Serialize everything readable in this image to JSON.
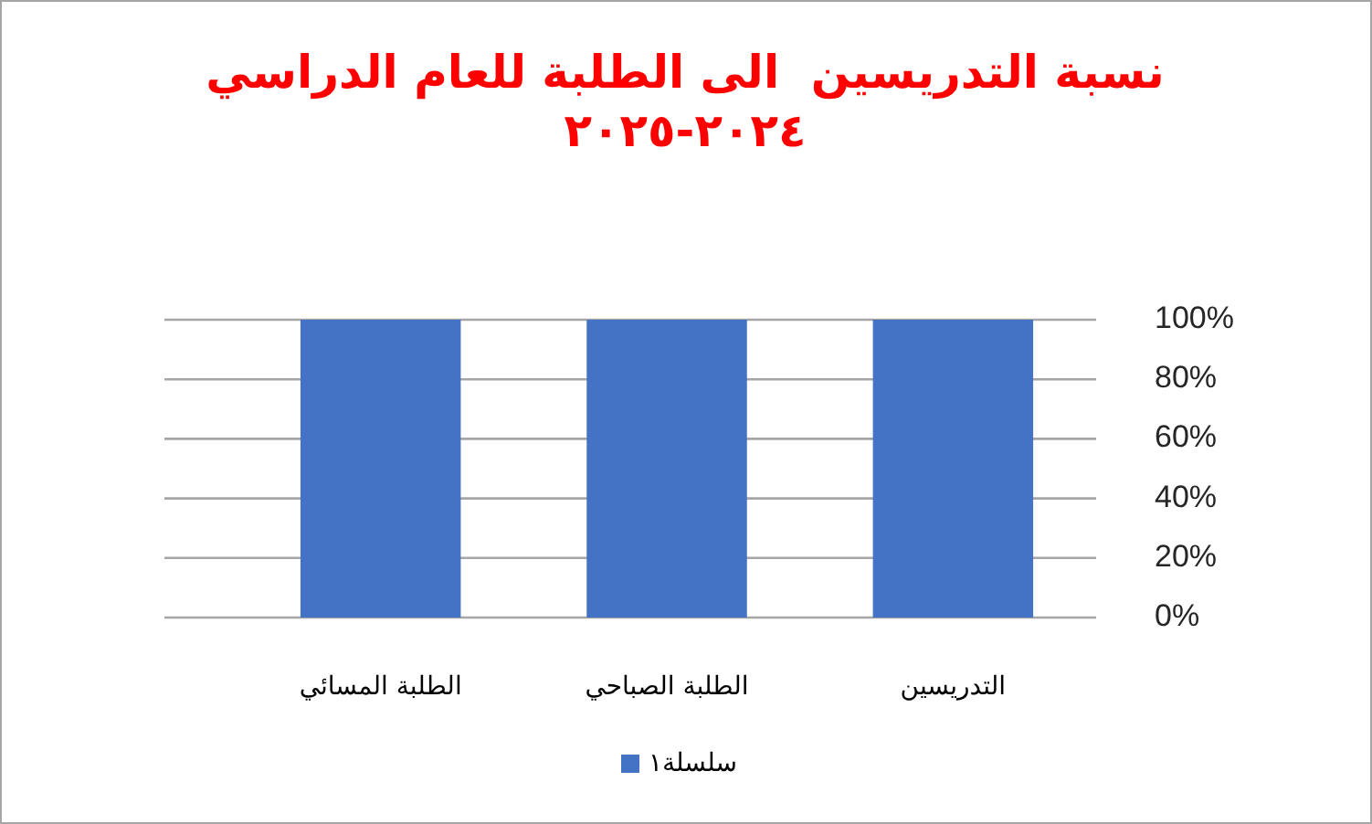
{
  "chart_data": {
    "type": "bar",
    "title": "نسبة التدريسين  الى الطلبة للعام الدراسي ٢٠٢٤-٢٠٢٥",
    "categories": [
      "الطلبة المسائي",
      "الطلبة الصباحي",
      "التدريسين"
    ],
    "series": [
      {
        "name": "سلسلة١",
        "color": "#4472c4",
        "values": [
          100,
          100,
          100
        ]
      }
    ],
    "ylim": [
      0,
      100
    ],
    "yticks": [
      {
        "value": 0,
        "label": "0%"
      },
      {
        "value": 20,
        "label": "20%"
      },
      {
        "value": 40,
        "label": "40%"
      },
      {
        "value": 60,
        "label": "60%"
      },
      {
        "value": 80,
        "label": "80%"
      },
      {
        "value": 100,
        "label": "100%"
      }
    ],
    "grid": "y",
    "legend": "bottom"
  }
}
